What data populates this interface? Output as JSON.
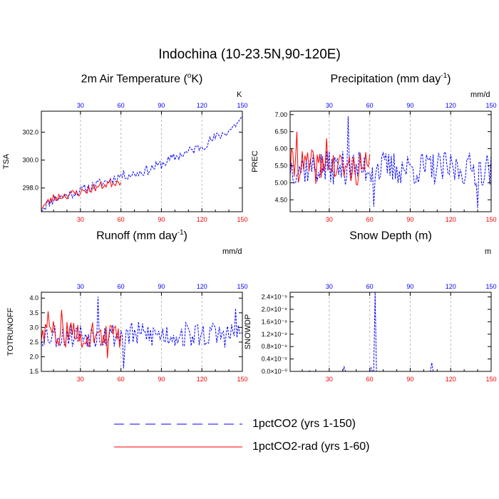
{
  "title": "Indochina (10-23.5N,90-120E)",
  "legend": [
    {
      "label": "1pctCO2 (yrs 1-150)",
      "color": "#0000ff",
      "dash": "dashed"
    },
    {
      "label": "1pctCO2-rad (yrs 1-60)",
      "color": "#ff0000",
      "dash": "solid"
    }
  ],
  "panels": [
    {
      "title_pre": "2m Air Temperature (",
      "title_sup": "o",
      "title_post": "K)",
      "unit": "K"
    },
    {
      "title_pre": "Precipitation (mm day",
      "title_sup": "-1",
      "title_post": ")",
      "unit": "mm/d"
    },
    {
      "title_pre": "Runoff (mm day",
      "title_sup": "-1",
      "title_post": ")",
      "unit": "mm/d"
    },
    {
      "title_pre": "Snow Depth (m)",
      "title_sup": "",
      "title_post": "",
      "unit": "m"
    }
  ],
  "chart_data": [
    {
      "type": "line",
      "title": "2m Air Temperature (oK)",
      "ylabel": "TSA",
      "xlim": [
        1,
        150
      ],
      "ylim": [
        296.3,
        303.5
      ],
      "yticks": [
        "298.0",
        "300.0",
        "302.0"
      ],
      "ytick_values": [
        298.0,
        300.0,
        302.0
      ],
      "xticks": [
        30,
        60,
        90,
        120,
        150
      ],
      "grid_x": true,
      "series": [
        {
          "name": "1pctCO2 (yrs 1-150)",
          "color": "#0000ff",
          "x": [
            1,
            10,
            20,
            30,
            40,
            50,
            60,
            70,
            80,
            90,
            100,
            110,
            120,
            130,
            140,
            150
          ],
          "y": [
            296.5,
            297.2,
            297.5,
            297.8,
            298.2,
            298.5,
            298.9,
            299.0,
            299.3,
            299.7,
            300.2,
            300.6,
            301.0,
            301.6,
            302.1,
            303.0
          ],
          "amp": 0.35,
          "seed": 11
        },
        {
          "name": "1pctCO2-rad (yrs 1-60)",
          "color": "#ff0000",
          "x": [
            1,
            10,
            20,
            30,
            40,
            50,
            60
          ],
          "y": [
            296.6,
            297.3,
            297.5,
            297.7,
            298.0,
            298.3,
            298.5
          ],
          "amp": 0.3,
          "seed": 23
        }
      ]
    },
    {
      "type": "line",
      "title": "Precipitation (mm day-1)",
      "ylabel": "PREC",
      "xlim": [
        1,
        150
      ],
      "ylim": [
        4.15,
        7.1
      ],
      "yticks": [
        "4.50",
        "5.00",
        "5.50",
        "6.00",
        "6.50",
        "7.00"
      ],
      "ytick_values": [
        4.5,
        5.0,
        5.5,
        6.0,
        6.5,
        7.0
      ],
      "xticks": [
        30,
        60,
        90,
        120,
        150
      ],
      "grid_x": true,
      "series": [
        {
          "name": "1pctCO2 (yrs 1-150)",
          "color": "#0000ff",
          "x": [
            1,
            150
          ],
          "y": [
            5.45,
            5.4
          ],
          "amp": 0.5,
          "seed": 37,
          "spikes": [
            [
              44,
              6.95
            ],
            [
              63,
              4.3
            ],
            [
              140,
              4.25
            ]
          ]
        },
        {
          "name": "1pctCO2-rad (yrs 1-60)",
          "color": "#ff0000",
          "x": [
            1,
            60
          ],
          "y": [
            5.5,
            5.4
          ],
          "amp": 0.5,
          "seed": 41,
          "spikes": [
            [
              6,
              6.5
            ],
            [
              28,
              6.3
            ]
          ]
        }
      ]
    },
    {
      "type": "line",
      "title": "Runoff (mm day-1)",
      "ylabel": "TOTRUNOFF",
      "xlim": [
        1,
        150
      ],
      "ylim": [
        1.5,
        4.2
      ],
      "yticks": [
        "1.5",
        "2.0",
        "2.5",
        "3.0",
        "3.5",
        "4.0"
      ],
      "ytick_values": [
        1.5,
        2.0,
        2.5,
        3.0,
        3.5,
        4.0
      ],
      "xticks": [
        30,
        60,
        90,
        120,
        150
      ],
      "grid_x": true,
      "series": [
        {
          "name": "1pctCO2 (yrs 1-150)",
          "color": "#0000ff",
          "x": [
            1,
            150
          ],
          "y": [
            2.75,
            2.75
          ],
          "amp": 0.45,
          "seed": 53,
          "spikes": [
            [
              43,
              4.05
            ],
            [
              62,
              1.6
            ],
            [
              145,
              3.65
            ]
          ]
        },
        {
          "name": "1pctCO2-rad (yrs 1-60)",
          "color": "#ff0000",
          "x": [
            1,
            60
          ],
          "y": [
            2.8,
            2.7
          ],
          "amp": 0.45,
          "seed": 59,
          "spikes": [
            [
              6,
              3.55
            ],
            [
              16,
              3.6
            ],
            [
              50,
              1.95
            ]
          ]
        }
      ]
    },
    {
      "type": "line",
      "title": "Snow Depth (m)",
      "ylabel": "SNOWDP",
      "xlim": [
        1,
        150
      ],
      "ylim": [
        0,
        2.55
      ],
      "y_scale_note": "x10^-9",
      "yticks": [
        "0.0×10⁻⁰",
        "0.4×10⁻⁹",
        "0.8×10⁻⁹",
        "1.2×10⁻⁹",
        "1.6×10⁻⁹",
        "2.0×10⁻⁹",
        "2.4×10⁻⁹"
      ],
      "ytick_values": [
        0,
        0.4,
        0.8,
        1.2,
        1.6,
        2.0,
        2.4
      ],
      "xticks": [
        30,
        60,
        90,
        120,
        150
      ],
      "grid_x": true,
      "series": [
        {
          "name": "1pctCO2 (yrs 1-150)",
          "color": "#0000ff",
          "x": [
            1,
            14,
            15,
            16,
            40,
            41,
            42,
            60,
            61,
            62,
            63,
            64,
            65,
            66,
            105,
            106,
            107,
            150
          ],
          "y": [
            0,
            0,
            0.03,
            0,
            0,
            0.15,
            0,
            0,
            0.12,
            0,
            0,
            2.55,
            0,
            0,
            0,
            0.28,
            0,
            0
          ],
          "amp": 0,
          "seed": 1,
          "raw": true
        },
        {
          "name": "1pctCO2-rad (yrs 1-60)",
          "color": "#ff0000",
          "x": [
            1,
            60
          ],
          "y": [
            0,
            0
          ],
          "amp": 0,
          "seed": 2,
          "raw": true
        }
      ]
    }
  ]
}
